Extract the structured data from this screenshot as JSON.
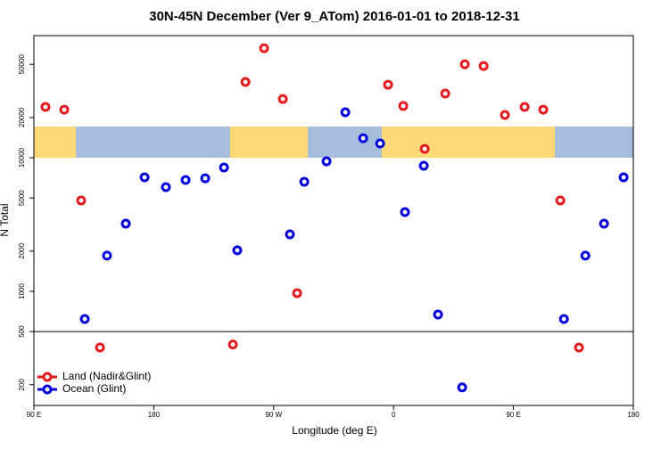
{
  "chart_data": {
    "type": "scatter",
    "title": "30N-45N December (Ver 9_ATom)   2016-01-01 to 2018-12-31",
    "x_label": "Longitude (deg E)",
    "y_label": "N Total",
    "xlim": [
      90,
      540
    ],
    "ylim": [
      140,
      82000
    ],
    "ylog": true,
    "hline": 500,
    "legend": "bottomleft",
    "xticks": [
      {
        "value": 90,
        "label": "90 E"
      },
      180,
      {
        "value": 270,
        "label": "90 W"
      },
      0,
      {
        "value": 450,
        "label": "90 E"
      },
      {
        "value": 540,
        "label": "180"
      }
    ],
    "yticks": [
      200,
      500,
      1000,
      2000,
      5000,
      10000,
      20000,
      50000
    ],
    "series": [
      {
        "name": "Land (Nadir&Glint)",
        "color": "#e41a1c",
        "x": [
          98.7,
          112.8,
          125.5,
          139.6,
          239.4,
          248.8,
          262.8,
          276.9,
          287.6,
          355.9,
          367.3,
          383.4,
          398.8,
          413.5,
          427.6,
          443.6,
          458.4,
          472.4,
          485.2,
          499.2
        ],
        "values": [
          24000,
          22900,
          4790,
          380,
          400,
          36900,
          66000,
          27500,
          970,
          35200,
          24400,
          11650,
          30200,
          50100,
          48600,
          20900,
          24000,
          22900,
          4790,
          380
        ]
      },
      {
        "name": "Ocean (Glint)",
        "color": "#0000dd",
        "x": [
          128.2,
          144.9,
          159,
          173.1,
          189.1,
          203.9,
          218.6,
          232.7,
          242.7,
          282.2,
          293,
          309.7,
          323.8,
          337.2,
          349.9,
          368.6,
          382.7,
          393.4,
          411.5,
          487.9,
          504,
          518,
          532.7
        ],
        "values": [
          621,
          1850,
          3210,
          7140,
          6030,
          6810,
          7020,
          8450,
          2030,
          2670,
          6610,
          9400,
          21900,
          14000,
          12780,
          3920,
          8710,
          671,
          191,
          621,
          1850,
          3210,
          7140
        ]
      }
    ]
  }
}
